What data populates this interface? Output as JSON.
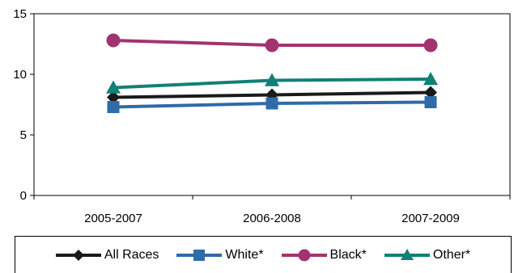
{
  "chart_data": {
    "type": "line",
    "categories": [
      "2005-2007",
      "2006-2008",
      "2007-2009"
    ],
    "series": [
      {
        "name": "All Races",
        "values": [
          8.1,
          8.3,
          8.5
        ],
        "color": "#1a1a1a",
        "marker": "diamond"
      },
      {
        "name": "White*",
        "values": [
          7.3,
          7.6,
          7.7
        ],
        "color": "#2e6ba8",
        "marker": "square"
      },
      {
        "name": "Black*",
        "values": [
          12.8,
          12.4,
          12.4
        ],
        "color": "#a3336e",
        "marker": "circle"
      },
      {
        "name": "Other*",
        "values": [
          8.9,
          9.5,
          9.6
        ],
        "color": "#118077",
        "marker": "triangle"
      }
    ],
    "yticks": [
      0,
      5,
      10,
      15
    ],
    "ylim": [
      0,
      15
    ],
    "grid": false,
    "legend_position": "bottom"
  }
}
